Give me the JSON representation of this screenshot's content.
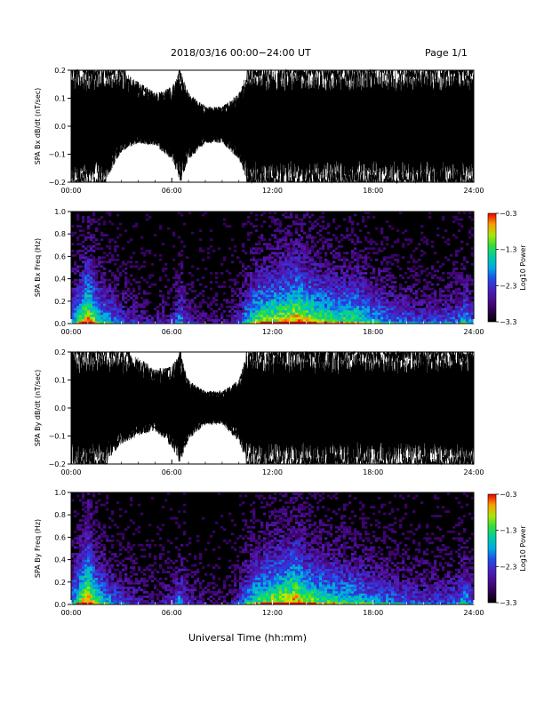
{
  "header": {
    "title": "2018/03/16  00:00−24:00 UT",
    "page": "Page 1/1"
  },
  "xlabel": "Universal Time (hh:mm)",
  "chart_data": [
    {
      "type": "line",
      "ylabel": "SPA Bx dB/dt (nT/sec)",
      "xlim": [
        0,
        24
      ],
      "ylim": [
        -0.2,
        0.2
      ],
      "xticks": [
        "00:00",
        "06:00",
        "12:00",
        "18:00",
        "24:00"
      ],
      "yticks": [
        "-0.2",
        "-0.1",
        "0.0",
        "0.1",
        "0.2"
      ],
      "envelope": {
        "hours": [
          0,
          0.5,
          1,
          2,
          3,
          4,
          5,
          6,
          6.5,
          7,
          8,
          9,
          10,
          10.5,
          11,
          12,
          13,
          14,
          15,
          16,
          17,
          18,
          19,
          20,
          21,
          22,
          23,
          24
        ],
        "upper": [
          0.2,
          0.2,
          0.2,
          0.2,
          0.2,
          0.16,
          0.12,
          0.14,
          0.2,
          0.12,
          0.07,
          0.07,
          0.12,
          0.2,
          0.2,
          0.2,
          0.2,
          0.2,
          0.2,
          0.2,
          0.2,
          0.2,
          0.2,
          0.2,
          0.2,
          0.2,
          0.2,
          0.2
        ],
        "lower": [
          -0.2,
          -0.2,
          -0.2,
          -0.2,
          -0.09,
          -0.06,
          -0.07,
          -0.12,
          -0.2,
          -0.12,
          -0.06,
          -0.06,
          -0.12,
          -0.2,
          -0.2,
          -0.2,
          -0.2,
          -0.2,
          -0.2,
          -0.2,
          -0.2,
          -0.2,
          -0.2,
          -0.2,
          -0.2,
          -0.2,
          -0.2,
          -0.2
        ]
      }
    },
    {
      "type": "heatmap",
      "ylabel": "SPA Bx Freq (Hz)",
      "xlim": [
        0,
        24
      ],
      "ylim": [
        0,
        1
      ],
      "xticks": [
        "00:00",
        "06:00",
        "12:00",
        "18:00",
        "24:00"
      ],
      "yticks": [
        "0.0",
        "0.2",
        "0.4",
        "0.6",
        "0.8",
        "1.0"
      ],
      "colorbar": {
        "label": "Log10 Power",
        "ticks": [
          "-0.3",
          "-1.3",
          "-2.3",
          "-3.3"
        ],
        "range": [
          -3.3,
          -0.3
        ]
      },
      "activity": {
        "hours": [
          0,
          0.5,
          1,
          1.5,
          2,
          3,
          4,
          5,
          6,
          6.5,
          7,
          8,
          9,
          10,
          10.5,
          11,
          12,
          13,
          13.5,
          14,
          15,
          16,
          17,
          18,
          19,
          20,
          21,
          22,
          23,
          23.5,
          24
        ],
        "level": [
          0.45,
          0.7,
          0.95,
          0.7,
          0.55,
          0.35,
          0.25,
          0.2,
          0.25,
          0.5,
          0.25,
          0.15,
          0.15,
          0.3,
          0.55,
          0.75,
          0.8,
          0.9,
          0.95,
          0.85,
          0.75,
          0.7,
          0.7,
          0.55,
          0.45,
          0.4,
          0.35,
          0.35,
          0.4,
          0.55,
          0.35
        ]
      }
    },
    {
      "type": "line",
      "ylabel": "SPA By dB/dt (nT/sec)",
      "xlim": [
        0,
        24
      ],
      "ylim": [
        -0.2,
        0.2
      ],
      "xticks": [
        "00:00",
        "06:00",
        "12:00",
        "18:00",
        "24:00"
      ],
      "yticks": [
        "-0.2",
        "-0.1",
        "0.0",
        "0.1",
        "0.2"
      ],
      "envelope": {
        "hours": [
          0,
          0.5,
          1,
          2,
          3,
          4,
          5,
          6,
          6.5,
          7,
          8,
          9,
          10,
          10.5,
          11,
          12,
          13,
          14,
          15,
          16,
          17,
          18,
          19,
          20,
          21,
          22,
          23,
          24
        ],
        "upper": [
          0.2,
          0.2,
          0.2,
          0.2,
          0.2,
          0.18,
          0.14,
          0.15,
          0.2,
          0.1,
          0.06,
          0.06,
          0.1,
          0.2,
          0.2,
          0.2,
          0.2,
          0.2,
          0.2,
          0.2,
          0.2,
          0.2,
          0.2,
          0.2,
          0.2,
          0.2,
          0.2,
          0.2
        ],
        "lower": [
          -0.2,
          -0.2,
          -0.2,
          -0.2,
          -0.13,
          -0.1,
          -0.08,
          -0.14,
          -0.2,
          -0.11,
          -0.06,
          -0.06,
          -0.12,
          -0.2,
          -0.2,
          -0.2,
          -0.2,
          -0.2,
          -0.2,
          -0.2,
          -0.2,
          -0.2,
          -0.2,
          -0.2,
          -0.2,
          -0.2,
          -0.2,
          -0.2
        ]
      }
    },
    {
      "type": "heatmap",
      "ylabel": "SPA By Freq (Hz)",
      "xlim": [
        0,
        24
      ],
      "ylim": [
        0,
        1
      ],
      "xticks": [
        "00:00",
        "06:00",
        "12:00",
        "18:00",
        "24:00"
      ],
      "yticks": [
        "0.0",
        "0.2",
        "0.4",
        "0.6",
        "0.8",
        "1.0"
      ],
      "colorbar": {
        "label": "Log10 Power",
        "ticks": [
          "-0.3",
          "-1.3",
          "-2.3",
          "-3.3"
        ],
        "range": [
          -3.3,
          -0.3
        ]
      },
      "activity": {
        "hours": [
          0,
          0.5,
          1,
          1.5,
          2,
          3,
          4,
          5,
          6,
          6.5,
          7,
          8,
          9,
          10,
          10.5,
          11,
          12,
          13,
          13.5,
          14,
          15,
          16,
          17,
          18,
          19,
          20,
          21,
          22,
          23,
          23.5,
          24
        ],
        "level": [
          0.5,
          0.75,
          1.0,
          0.7,
          0.55,
          0.35,
          0.25,
          0.2,
          0.25,
          0.5,
          0.25,
          0.15,
          0.15,
          0.3,
          0.55,
          0.7,
          0.8,
          0.9,
          0.95,
          0.8,
          0.7,
          0.65,
          0.6,
          0.5,
          0.45,
          0.4,
          0.35,
          0.35,
          0.4,
          0.55,
          0.35
        ]
      }
    }
  ]
}
